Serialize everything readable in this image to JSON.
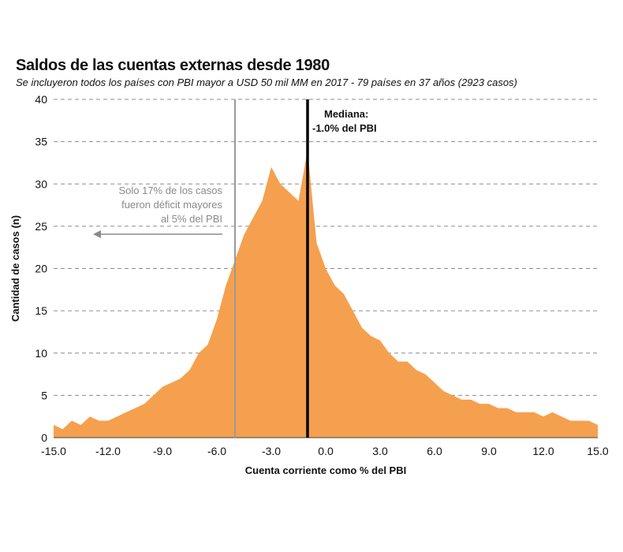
{
  "title": "Saldos de las cuentas externas desde 1980",
  "subtitle": "Se incluyeron todos los países con PBI mayor a USD 50 mil MM en 2017 - 79 países en 37 años (2923 casos)",
  "colors": {
    "fill": "#F5A04E",
    "median_line": "#000000",
    "threshold_line": "#9a9a9a",
    "grid": "#8c8c8c",
    "annotation": "#8a8a8a"
  },
  "annotations": {
    "median": [
      "Mediana:",
      "-1.0% del PBI"
    ],
    "deficit": [
      "Solo 17% de los casos",
      "fueron déficit mayores",
      "al 5% del PBI"
    ]
  },
  "chart_data": {
    "type": "area",
    "xlabel": "Cuenta corriente como % del PBI",
    "ylabel": "Cantidad de casos (n)",
    "xlim": [
      -15,
      15
    ],
    "ylim": [
      0,
      40
    ],
    "xticks": [
      "-15.0",
      "-12.0",
      "-9.0",
      "-6.0",
      "-3.0",
      "0.0",
      "3.0",
      "6.0",
      "9.0",
      "12.0",
      "15.0"
    ],
    "yticks": [
      "0",
      "5",
      "10",
      "15",
      "20",
      "25",
      "30",
      "35",
      "40"
    ],
    "grid": "horizontal dashed",
    "vlines": [
      {
        "x": -1.0,
        "label": "Mediana"
      },
      {
        "x": -5.0,
        "label": "-5% del PBI"
      }
    ],
    "series": [
      {
        "x": [
          -15.0,
          -14.5,
          -14.0,
          -13.5,
          -13.0,
          -12.5,
          -12.0,
          -11.5,
          -11.0,
          -10.5,
          -10.0,
          -9.5,
          -9.0,
          -8.5,
          -8.0,
          -7.5,
          -7.0,
          -6.5,
          -6.0,
          -5.5,
          -5.0,
          -4.5,
          -4.0,
          -3.5,
          -3.0,
          -2.5,
          -2.0,
          -1.5,
          -1.0,
          -0.5,
          0.0,
          0.5,
          1.0,
          1.5,
          2.0,
          2.5,
          3.0,
          3.5,
          4.0,
          4.5,
          5.0,
          5.5,
          6.0,
          6.5,
          7.0,
          7.5,
          8.0,
          8.5,
          9.0,
          9.5,
          10.0,
          10.5,
          11.0,
          11.5,
          12.0,
          12.5,
          13.0,
          13.5,
          14.0,
          14.5,
          15.0
        ],
        "values": [
          1.5,
          1,
          2,
          1.5,
          2.5,
          2,
          2,
          2.5,
          3,
          3.5,
          4,
          5,
          6,
          6.5,
          7,
          8,
          10,
          11,
          14,
          18,
          21,
          24,
          26,
          28,
          32,
          30,
          29,
          28,
          34,
          23,
          20,
          18,
          17,
          15,
          13,
          12,
          11.5,
          10,
          9,
          9,
          8,
          7.5,
          6.5,
          5.5,
          5,
          4.5,
          4.5,
          4,
          4,
          3.5,
          3.5,
          3,
          3,
          3,
          2.5,
          3,
          2.5,
          2,
          2,
          2,
          1.5
        ]
      }
    ]
  }
}
